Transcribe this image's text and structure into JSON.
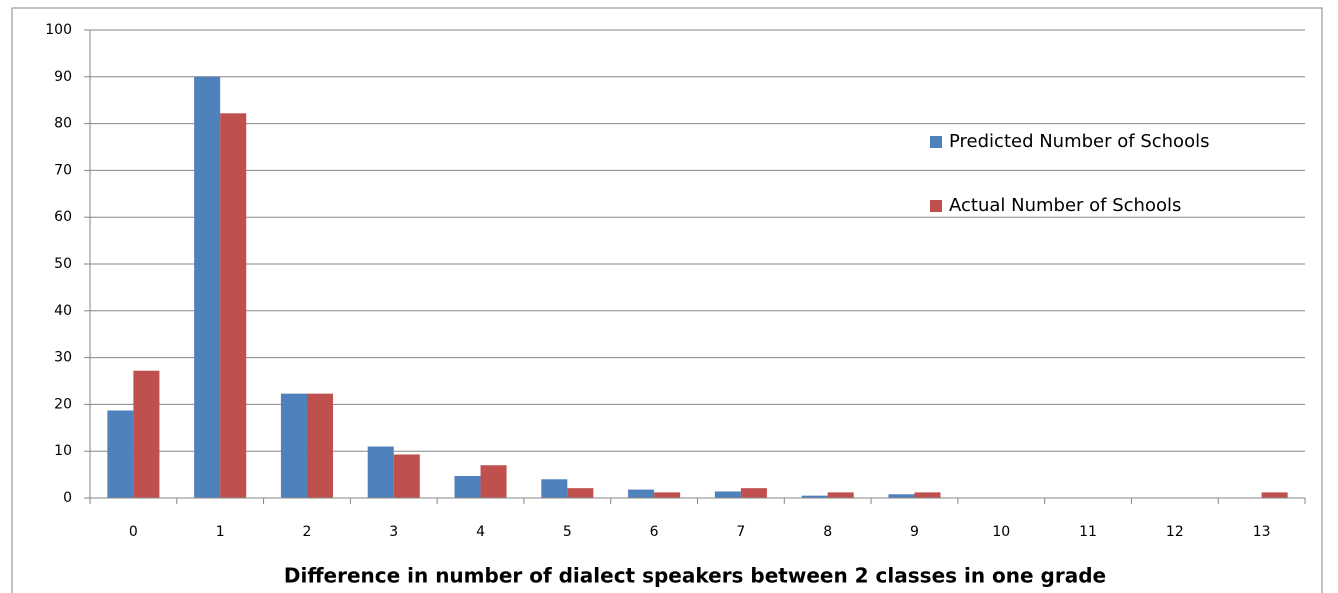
{
  "chart_data": {
    "type": "bar",
    "x_label": "Difference in number of dialect speakers between 2 classes in one grade",
    "categories": [
      "0",
      "1",
      "2",
      "3",
      "4",
      "5",
      "6",
      "7",
      "8",
      "9",
      "10",
      "11",
      "12",
      "13"
    ],
    "series": [
      {
        "name": "Predicted Number of Schools",
        "color": "#4f81bd",
        "values": [
          18.7,
          90,
          22.3,
          11,
          4.7,
          4,
          1.8,
          1.4,
          0.5,
          0.8,
          0,
          0,
          0,
          0
        ]
      },
      {
        "name": "Actual Number of Schools",
        "color": "#c0504d",
        "values": [
          27.2,
          82.2,
          22.3,
          9.3,
          7,
          2.1,
          1.2,
          2.1,
          1.2,
          1.2,
          0,
          0,
          0,
          1.2
        ]
      }
    ],
    "ylim": [
      0,
      100
    ],
    "yticks": [
      0,
      10,
      20,
      30,
      40,
      50,
      60,
      70,
      80,
      90,
      100
    ],
    "grid": true,
    "legend": "right"
  }
}
